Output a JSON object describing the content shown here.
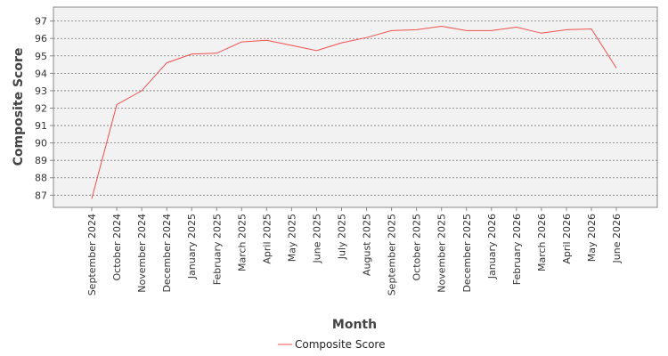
{
  "chart_data": {
    "type": "line",
    "title": "",
    "xlabel": "Month",
    "ylabel": "Composite Score",
    "categories": [
      "September 2024",
      "October 2024",
      "November 2024",
      "December 2024",
      "January 2025",
      "February 2025",
      "March 2025",
      "April 2025",
      "May 2025",
      "June 2025",
      "July 2025",
      "August 2025",
      "September 2025",
      "October 2025",
      "November 2025",
      "December 2025",
      "January 2026",
      "February 2026",
      "March 2026",
      "April 2026",
      "May 2026",
      "June 2026"
    ],
    "series": [
      {
        "name": "Composite Score",
        "color": "#f05050",
        "values": [
          86.8,
          92.2,
          93.0,
          94.6,
          95.1,
          95.15,
          95.8,
          95.9,
          95.6,
          95.3,
          95.75,
          96.05,
          96.45,
          96.5,
          96.7,
          96.45,
          96.45,
          96.65,
          96.3,
          96.5,
          96.55,
          94.3
        ]
      }
    ],
    "ylim": [
      86.3,
      97.8
    ],
    "yticks": [
      87,
      88,
      89,
      90,
      91,
      92,
      93,
      94,
      95,
      96,
      97
    ],
    "grid": true,
    "legend": "bottom-center"
  }
}
